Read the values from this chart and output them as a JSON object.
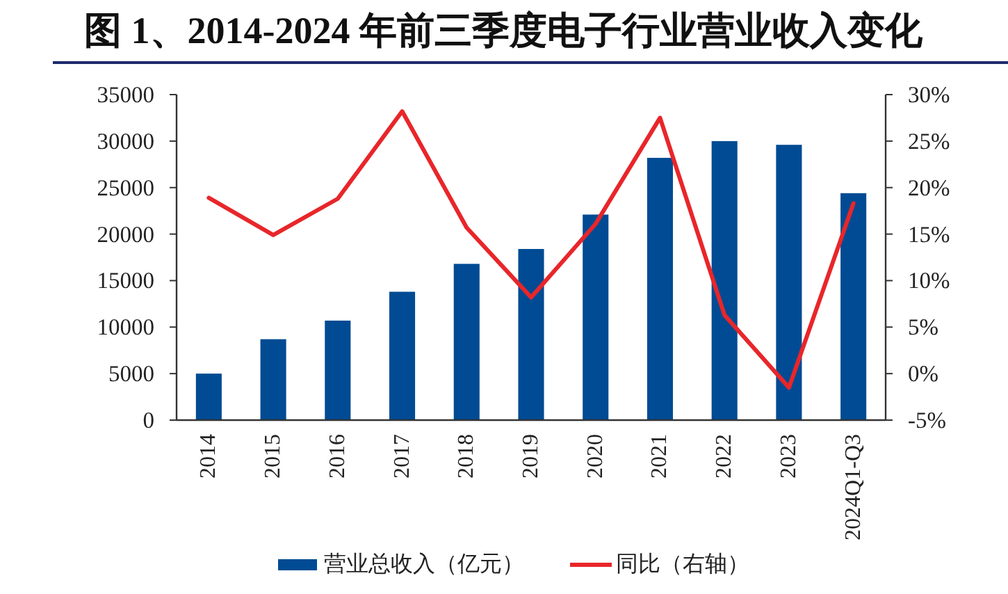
{
  "chart_data": {
    "type": "bar",
    "title": "图 1、2014-2024 年前三季度电子行业营业收入变化",
    "categories": [
      "2014",
      "2015",
      "2016",
      "2017",
      "2018",
      "2019",
      "2020",
      "2021",
      "2022",
      "2023",
      "2024Q1-Q3"
    ],
    "series": [
      {
        "name": "营业总收入（亿元）",
        "color": "#004b93",
        "values": [
          5000,
          8700,
          10700,
          13800,
          16800,
          18400,
          22100,
          28200,
          30000,
          29600,
          24400
        ]
      },
      {
        "name": "同比（右轴）",
        "type": "line",
        "axis": "y2",
        "color": "#e8262a",
        "values": [
          18.9,
          14.9,
          18.8,
          28.2,
          15.7,
          8.2,
          16.1,
          27.5,
          6.3,
          -1.5,
          18.3
        ]
      }
    ],
    "ylim": [
      0,
      35000
    ],
    "yticks": [
      0,
      5000,
      10000,
      15000,
      20000,
      25000,
      30000,
      35000
    ],
    "y2lim": [
      -5,
      30
    ],
    "y2ticks": [
      {
        "value": -5,
        "label": "-5%"
      },
      {
        "value": 0,
        "label": "0%"
      },
      {
        "value": 5,
        "label": "5%"
      },
      {
        "value": 10,
        "label": "10%"
      },
      {
        "value": 15,
        "label": "15%"
      },
      {
        "value": 20,
        "label": "20%"
      },
      {
        "value": 25,
        "label": "25%"
      },
      {
        "value": 30,
        "label": "30%"
      }
    ],
    "legend": "bottom"
  }
}
